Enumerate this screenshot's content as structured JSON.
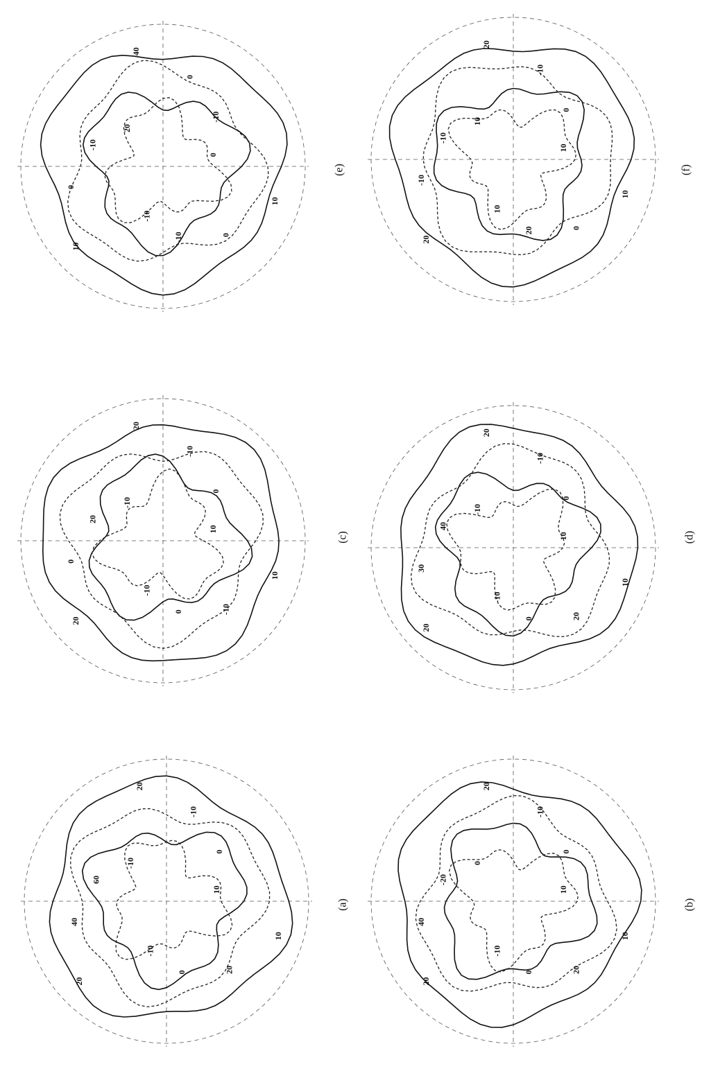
{
  "panels": [
    {
      "label": "(e)",
      "contour_labels": [
        "10",
        "0",
        "-10",
        "-10",
        "10",
        "0",
        "-10",
        "20",
        "40",
        "0",
        "-10",
        "0"
      ]
    },
    {
      "label": "(f)",
      "contour_labels": [
        "10",
        "0",
        "20",
        "10",
        "20",
        "-10",
        "-10",
        "10",
        "20",
        "-10",
        "0",
        "10"
      ]
    },
    {
      "label": "(c)",
      "contour_labels": [
        "10",
        "-10",
        "0",
        "-10",
        "20",
        "0",
        "20",
        "-10",
        "20",
        "-10",
        "0",
        "10"
      ]
    },
    {
      "label": "(d)",
      "contour_labels": [
        "10",
        "20",
        "0",
        "-10",
        "20",
        "30",
        "40",
        "-10",
        "20",
        "-10",
        "0",
        "10"
      ]
    },
    {
      "label": "(a)",
      "contour_labels": [
        "10",
        "20",
        "0",
        "-10",
        "20",
        "40",
        "60",
        "-10",
        "20",
        "-10",
        "0",
        "10"
      ]
    },
    {
      "label": "(b)",
      "contour_labels": [
        "10",
        "20",
        "0",
        "-10",
        "20",
        "40",
        "-20",
        "0",
        "20",
        "-10",
        "0",
        "10"
      ]
    }
  ]
}
